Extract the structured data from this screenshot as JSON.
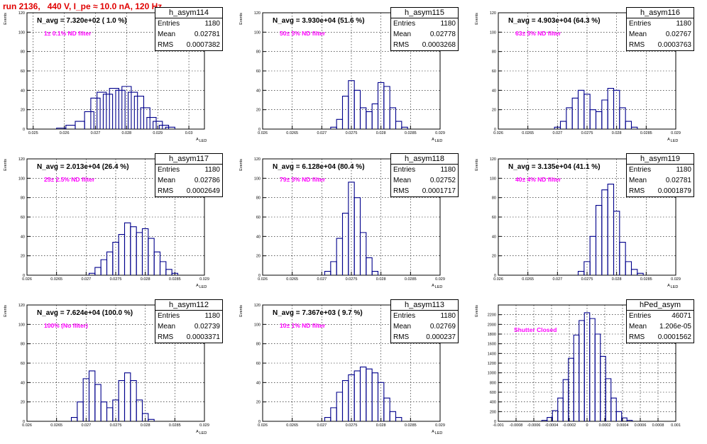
{
  "run_title": "run 2136,   440 V, I_pe ≈ 10.0 nA, 120 Hz",
  "stat_labels": {
    "entries": "Entries",
    "mean": "Mean",
    "rms": "RMS"
  },
  "colors": {
    "histogram": "#00008b",
    "filter_text": "#ff00ff",
    "title": "#e00000"
  },
  "chart_data": [
    {
      "type": "bar",
      "name": "h_asym114",
      "navg": "N_avg = 7.320e+02 ( 1.0 %)",
      "filter": "1± 0.1% ND filter",
      "entries": "1180",
      "mean": "0.02781",
      "rms": "0.0007382",
      "xlim": [
        0.0248,
        0.0305
      ],
      "ylim": [
        0,
        120
      ],
      "xticks": [
        0.025,
        0.026,
        0.027,
        0.028,
        0.029,
        0.03
      ],
      "xticklabels": [
        "0.025",
        "0.026",
        "0.027",
        "0.028",
        "0.029",
        "0.03"
      ],
      "yticks": [
        0,
        20,
        40,
        60,
        80,
        100,
        120
      ],
      "yticklabels": [
        "0",
        "20",
        "40",
        "60",
        "80",
        "100",
        "120"
      ],
      "ylabel": "Events",
      "xlabel": "A",
      "xlabel_sub": "LED",
      "x": [
        0.0259,
        0.0262,
        0.0265,
        0.0268,
        0.027,
        0.0272,
        0.0274,
        0.0276,
        0.0278,
        0.028,
        0.0282,
        0.0284,
        0.0286,
        0.0288,
        0.029,
        0.0292,
        0.0294
      ],
      "values": [
        1,
        4,
        8,
        18,
        32,
        38,
        36,
        42,
        40,
        44,
        38,
        34,
        22,
        12,
        8,
        4,
        2
      ]
    },
    {
      "type": "bar",
      "name": "h_asym115",
      "navg": "N_avg = 3.930e+04 (51.6 %)",
      "filter": "50± 5% ND filter",
      "entries": "1180",
      "mean": "0.02778",
      "rms": "0.0003268",
      "xlim": [
        0.026,
        0.029
      ],
      "ylim": [
        0,
        120
      ],
      "xticks": [
        0.026,
        0.0265,
        0.027,
        0.0275,
        0.028,
        0.0285,
        0.029
      ],
      "xticklabels": [
        "0.026",
        "0.0265",
        "0.027",
        "0.0275",
        "0.028",
        "0.0285",
        "0.029"
      ],
      "yticks": [
        0,
        20,
        40,
        60,
        80,
        100,
        120
      ],
      "yticklabels": [
        "0",
        "20",
        "40",
        "60",
        "80",
        "100",
        "120"
      ],
      "ylabel": "Events",
      "xlabel": "A",
      "xlabel_sub": "LED",
      "x": [
        0.0272,
        0.0273,
        0.0274,
        0.0275,
        0.0276,
        0.0277,
        0.0278,
        0.0279,
        0.028,
        0.0281,
        0.0282,
        0.0283,
        0.0284
      ],
      "values": [
        2,
        10,
        34,
        50,
        40,
        22,
        18,
        26,
        48,
        44,
        22,
        8,
        2
      ]
    },
    {
      "type": "bar",
      "name": "h_asym116",
      "navg": "N_avg = 4.903e+04 (64.3 %)",
      "filter": "63± 5% ND filter",
      "entries": "1180",
      "mean": "0.02767",
      "rms": "0.0003763",
      "xlim": [
        0.026,
        0.029
      ],
      "ylim": [
        0,
        120
      ],
      "xticks": [
        0.026,
        0.0265,
        0.027,
        0.0275,
        0.028,
        0.0285,
        0.029
      ],
      "xticklabels": [
        "0.026",
        "0.0265",
        "0.027",
        "0.0275",
        "0.028",
        "0.0285",
        "0.029"
      ],
      "yticks": [
        0,
        20,
        40,
        60,
        80,
        100,
        120
      ],
      "yticklabels": [
        "0",
        "20",
        "40",
        "60",
        "80",
        "100",
        "120"
      ],
      "ylabel": "Events",
      "xlabel": "A",
      "xlabel_sub": "LED",
      "x": [
        0.027,
        0.0271,
        0.0272,
        0.0273,
        0.0274,
        0.0275,
        0.0276,
        0.0277,
        0.0278,
        0.0279,
        0.028,
        0.0281,
        0.0282,
        0.0283
      ],
      "values": [
        2,
        8,
        22,
        32,
        40,
        36,
        20,
        18,
        30,
        42,
        40,
        22,
        8,
        2
      ]
    },
    {
      "type": "bar",
      "name": "h_asym117",
      "navg": "N_avg = 2.013e+04 (26.4 %)",
      "filter": "25± 2.5% ND filter",
      "entries": "1180",
      "mean": "0.02786",
      "rms": "0.0002649",
      "xlim": [
        0.026,
        0.029
      ],
      "ylim": [
        0,
        120
      ],
      "xticks": [
        0.026,
        0.0265,
        0.027,
        0.0275,
        0.028,
        0.0285,
        0.029
      ],
      "xticklabels": [
        "0.026",
        "0.0265",
        "0.027",
        "0.0275",
        "0.028",
        "0.0285",
        "0.029"
      ],
      "yticks": [
        0,
        20,
        40,
        60,
        80,
        100,
        120
      ],
      "yticklabels": [
        "0",
        "20",
        "40",
        "60",
        "80",
        "100",
        "120"
      ],
      "ylabel": "Events",
      "xlabel": "A",
      "xlabel_sub": "LED",
      "x": [
        0.0271,
        0.0272,
        0.0273,
        0.0274,
        0.0275,
        0.0276,
        0.0277,
        0.0278,
        0.0279,
        0.028,
        0.0281,
        0.0282,
        0.0283,
        0.0284,
        0.0285
      ],
      "values": [
        2,
        8,
        16,
        24,
        34,
        42,
        54,
        50,
        44,
        48,
        38,
        24,
        14,
        6,
        2
      ]
    },
    {
      "type": "bar",
      "name": "h_asym118",
      "navg": "N_avg = 6.128e+04 (80.4 %)",
      "filter": "79± 5% ND filter",
      "entries": "1180",
      "mean": "0.02752",
      "rms": "0.0001717",
      "xlim": [
        0.026,
        0.029
      ],
      "ylim": [
        0,
        120
      ],
      "xticks": [
        0.026,
        0.0265,
        0.027,
        0.0275,
        0.028,
        0.0285,
        0.029
      ],
      "xticklabels": [
        "0.026",
        "0.0265",
        "0.027",
        "0.0275",
        "0.028",
        "0.0285",
        "0.029"
      ],
      "yticks": [
        0,
        20,
        40,
        60,
        80,
        100,
        120
      ],
      "yticklabels": [
        "0",
        "20",
        "40",
        "60",
        "80",
        "100",
        "120"
      ],
      "ylabel": "Events",
      "xlabel": "A",
      "xlabel_sub": "LED",
      "x": [
        0.0271,
        0.0272,
        0.0273,
        0.0274,
        0.0275,
        0.0276,
        0.0277,
        0.0278,
        0.0279
      ],
      "values": [
        4,
        14,
        38,
        64,
        96,
        80,
        44,
        18,
        4
      ]
    },
    {
      "type": "bar",
      "name": "h_asym119",
      "navg": "N_avg = 3.135e+04 (41.1 %)",
      "filter": "40± 4% ND filter",
      "entries": "1180",
      "mean": "0.02781",
      "rms": "0.0001879",
      "xlim": [
        0.026,
        0.029
      ],
      "ylim": [
        0,
        120
      ],
      "xticks": [
        0.026,
        0.0265,
        0.027,
        0.0275,
        0.028,
        0.0285,
        0.029
      ],
      "xticklabels": [
        "0.026",
        "0.0265",
        "0.027",
        "0.0275",
        "0.028",
        "0.0285",
        "0.029"
      ],
      "yticks": [
        0,
        20,
        40,
        60,
        80,
        100,
        120
      ],
      "yticklabels": [
        "0",
        "20",
        "40",
        "60",
        "80",
        "100",
        "120"
      ],
      "ylabel": "Events",
      "xlabel": "A",
      "xlabel_sub": "LED",
      "x": [
        0.0274,
        0.0275,
        0.0276,
        0.0277,
        0.0278,
        0.0279,
        0.028,
        0.0281,
        0.0282,
        0.0283,
        0.0284
      ],
      "values": [
        4,
        14,
        40,
        72,
        88,
        94,
        66,
        34,
        14,
        6,
        2
      ]
    },
    {
      "type": "bar",
      "name": "h_asym112",
      "navg": "N_avg = 7.624e+04 (100.0 %)",
      "filter": "100% (No filter)",
      "entries": "1180",
      "mean": "0.02739",
      "rms": "0.0003371",
      "xlim": [
        0.026,
        0.029
      ],
      "ylim": [
        0,
        120
      ],
      "xticks": [
        0.026,
        0.0265,
        0.027,
        0.0275,
        0.028,
        0.0285,
        0.029
      ],
      "xticklabels": [
        "0.026",
        "0.0265",
        "0.027",
        "0.0275",
        "0.028",
        "0.0285",
        "0.029"
      ],
      "yticks": [
        0,
        20,
        40,
        60,
        80,
        100,
        120
      ],
      "yticklabels": [
        "0",
        "20",
        "40",
        "60",
        "80",
        "100",
        "120"
      ],
      "ylabel": "Events",
      "xlabel": "A",
      "xlabel_sub": "LED",
      "x": [
        0.0268,
        0.0269,
        0.027,
        0.0271,
        0.0272,
        0.0273,
        0.0274,
        0.0275,
        0.0276,
        0.0277,
        0.0278,
        0.0279,
        0.028,
        0.0281
      ],
      "values": [
        4,
        20,
        44,
        52,
        38,
        20,
        14,
        22,
        42,
        50,
        42,
        22,
        8,
        2
      ]
    },
    {
      "type": "bar",
      "name": "h_asym113",
      "navg": "N_avg = 7.367e+03 ( 9.7 %)",
      "filter": "10± 1% ND filter",
      "entries": "1180",
      "mean": "0.02769",
      "rms": "0.000237",
      "xlim": [
        0.026,
        0.029
      ],
      "ylim": [
        0,
        120
      ],
      "xticks": [
        0.026,
        0.0265,
        0.027,
        0.0275,
        0.028,
        0.0285,
        0.029
      ],
      "xticklabels": [
        "0.026",
        "0.0265",
        "0.027",
        "0.0275",
        "0.028",
        "0.0285",
        "0.029"
      ],
      "yticks": [
        0,
        20,
        40,
        60,
        80,
        100,
        120
      ],
      "yticklabels": [
        "0",
        "20",
        "40",
        "60",
        "80",
        "100",
        "120"
      ],
      "ylabel": "Events",
      "xlabel": "A",
      "xlabel_sub": "LED",
      "x": [
        0.0271,
        0.0272,
        0.0273,
        0.0274,
        0.0275,
        0.0276,
        0.0277,
        0.0278,
        0.0279,
        0.028,
        0.0281,
        0.0282,
        0.0283
      ],
      "values": [
        4,
        14,
        30,
        42,
        48,
        52,
        56,
        54,
        50,
        40,
        24,
        10,
        4
      ]
    },
    {
      "type": "bar",
      "name": "hPed_asym",
      "navg": "",
      "filter": "Shutter Closed",
      "entries": "46071",
      "mean": "1.206e-05",
      "rms": "0.0001562",
      "xlim": [
        -0.001,
        0.001
      ],
      "ylim": [
        0,
        2400
      ],
      "xticks": [
        -0.001,
        -0.0008,
        -0.0006,
        -0.0004,
        -0.0002,
        0,
        0.0002,
        0.0004,
        0.0006,
        0.0008,
        0.001
      ],
      "xticklabels": [
        "-0.001",
        "-0.0008",
        "-0.0006",
        "-0.0004",
        "-0.0002",
        "0",
        "0.0002",
        "0.0004",
        "0.0006",
        "0.0008",
        "0.001"
      ],
      "yticks": [
        0,
        200,
        400,
        600,
        800,
        1000,
        1200,
        1400,
        1600,
        1800,
        2000,
        2200
      ],
      "yticklabels": [
        "0",
        "200",
        "400",
        "600",
        "800",
        "1000",
        "1200",
        "1400",
        "1600",
        "1800",
        "2000",
        "2200"
      ],
      "ylabel": "Events",
      "xlabel": "",
      "xlabel_sub": "",
      "x": [
        -0.00048,
        -0.00042,
        -0.00036,
        -0.0003,
        -0.00024,
        -0.00018,
        -0.00012,
        -6e-05,
        0.0,
        6e-05,
        0.00012,
        0.00018,
        0.00024,
        0.0003,
        0.00036,
        0.00042,
        0.00048
      ],
      "values": [
        20,
        80,
        220,
        480,
        860,
        1300,
        1780,
        2080,
        2240,
        2120,
        1800,
        1340,
        880,
        480,
        200,
        70,
        20
      ]
    }
  ]
}
